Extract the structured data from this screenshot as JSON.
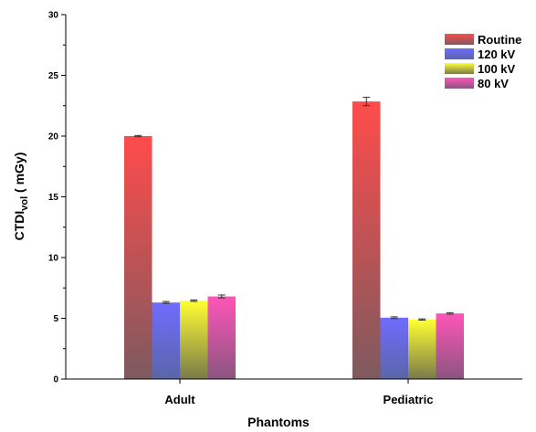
{
  "chart_data": {
    "type": "bar",
    "categories": [
      "Adult",
      "Pediatric"
    ],
    "series": [
      {
        "name": "Routine",
        "values": [
          20.0,
          22.85
        ],
        "errors": [
          0.05,
          0.35
        ],
        "colors": [
          "#ff4b4b",
          "#7d5a5f"
        ]
      },
      {
        "name": "120 kV",
        "values": [
          6.3,
          5.05
        ],
        "errors": [
          0.08,
          0.07
        ],
        "colors": [
          "#6f6cff",
          "#5a66a8"
        ]
      },
      {
        "name": "100 kV",
        "values": [
          6.45,
          4.9
        ],
        "errors": [
          0.06,
          0.05
        ],
        "colors": [
          "#ffff33",
          "#7a7a4a"
        ]
      },
      {
        "name": "80 kV",
        "values": [
          6.8,
          5.4
        ],
        "errors": [
          0.12,
          0.06
        ],
        "colors": [
          "#ff55b8",
          "#8a5580"
        ]
      }
    ],
    "xlabel": "Phantoms",
    "ylabel_main": "CTDI",
    "ylabel_sub": "vol",
    "ylabel_unit": " ( mGy)",
    "ylim": [
      0,
      30
    ],
    "yticks": [
      "0",
      "5",
      "10",
      "15",
      "20",
      "25",
      "30"
    ],
    "legend_position": "top-right",
    "grid": false
  }
}
